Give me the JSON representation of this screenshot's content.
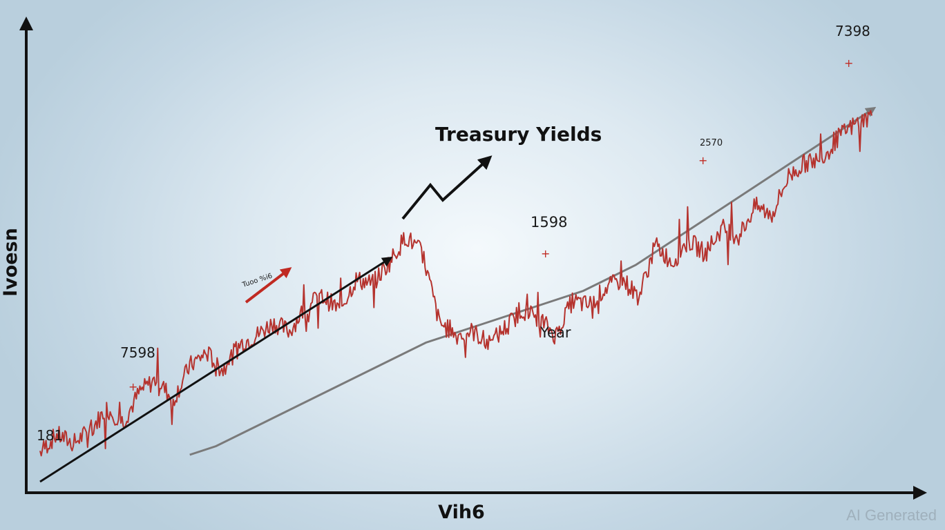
{
  "chart_data": {
    "type": "line",
    "title": "Treasury Yields",
    "xlabel": "Vih6",
    "ylabel": "Ivoesn",
    "watermark": "AI Generated",
    "colors": {
      "series": "#b5332e",
      "trend": "#7a7a7a",
      "arrow": "#111111",
      "small_arrow": "#c02a22"
    },
    "annotations": [
      {
        "text": "181"
      },
      {
        "text": "7598"
      },
      {
        "text": "1598"
      },
      {
        "text": "Year"
      },
      {
        "text": "2570"
      },
      {
        "text": "7398"
      },
      {
        "text": "Tuoo %i6"
      }
    ],
    "series": [
      {
        "x": [
          0,
          2,
          4,
          6,
          8,
          10,
          12,
          14,
          16,
          18,
          20,
          22,
          24,
          26,
          28,
          30,
          32,
          34,
          36,
          38,
          40,
          42,
          44,
          46,
          48,
          50,
          52,
          54,
          56,
          58,
          60,
          62,
          64,
          66,
          68,
          70,
          72,
          74,
          76,
          78,
          80,
          82,
          84,
          86,
          88,
          90,
          92,
          94,
          96,
          98,
          100
        ],
        "values": [
          8,
          12,
          10,
          13,
          18,
          15,
          22,
          25,
          20,
          28,
          31,
          27,
          33,
          35,
          38,
          36,
          42,
          44,
          41,
          48,
          47,
          52,
          58,
          54,
          38,
          35,
          36,
          33,
          37,
          41,
          39,
          35,
          43,
          42,
          46,
          48,
          44,
          56,
          52,
          57,
          54,
          60,
          58,
          65,
          63,
          72,
          75,
          76,
          81,
          84,
          86
        ]
      }
    ],
    "trend": {
      "values": [
        8,
        10,
        13,
        16,
        19,
        22,
        25,
        28,
        31,
        34,
        36,
        38,
        40,
        42,
        44,
        46,
        49,
        52,
        56,
        60,
        64,
        68,
        72,
        76,
        80,
        84,
        88
      ]
    }
  }
}
